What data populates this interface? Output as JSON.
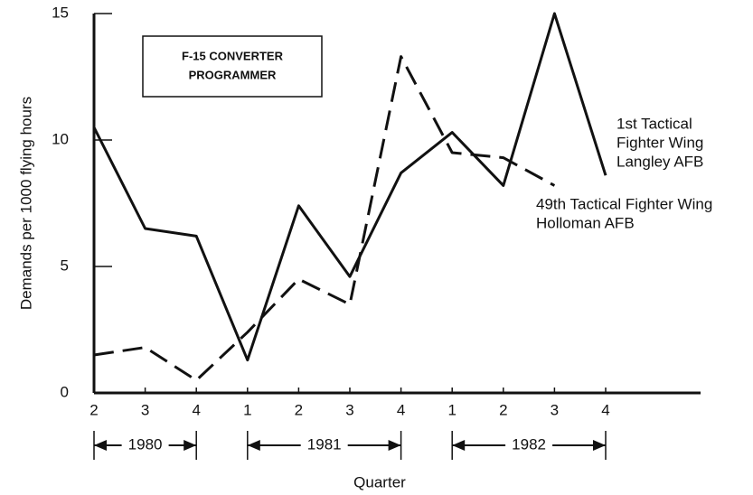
{
  "chart_data": {
    "type": "line",
    "x_label": "Quarter",
    "y_label": "Demands per 1000 flying hours",
    "annotation": [
      "F-15 CONVERTER",
      "PROGRAMMER"
    ],
    "categories": [
      "2",
      "3",
      "4",
      "1",
      "2",
      "3",
      "4",
      "1",
      "2",
      "3",
      "4"
    ],
    "year_labels": [
      "1980",
      "1981",
      "1982"
    ],
    "ylim": [
      0,
      15
    ],
    "yticks": [
      0,
      5,
      10,
      15
    ],
    "series": [
      {
        "name": [
          "1st Tactical",
          "Fighter Wing",
          "Langley AFB"
        ],
        "color": "#111111",
        "dashed": false,
        "values": [
          10.5,
          6.5,
          6.2,
          1.3,
          7.4,
          4.6,
          8.7,
          10.3,
          8.2,
          15.0,
          8.6
        ]
      },
      {
        "name": [
          "49th Tactical Fighter Wing",
          "Holloman AFB"
        ],
        "color": "#111111",
        "dashed": true,
        "values": [
          1.5,
          1.8,
          0.5,
          2.4,
          4.5,
          3.5,
          13.3,
          9.5,
          9.3,
          8.2,
          null
        ]
      }
    ]
  }
}
